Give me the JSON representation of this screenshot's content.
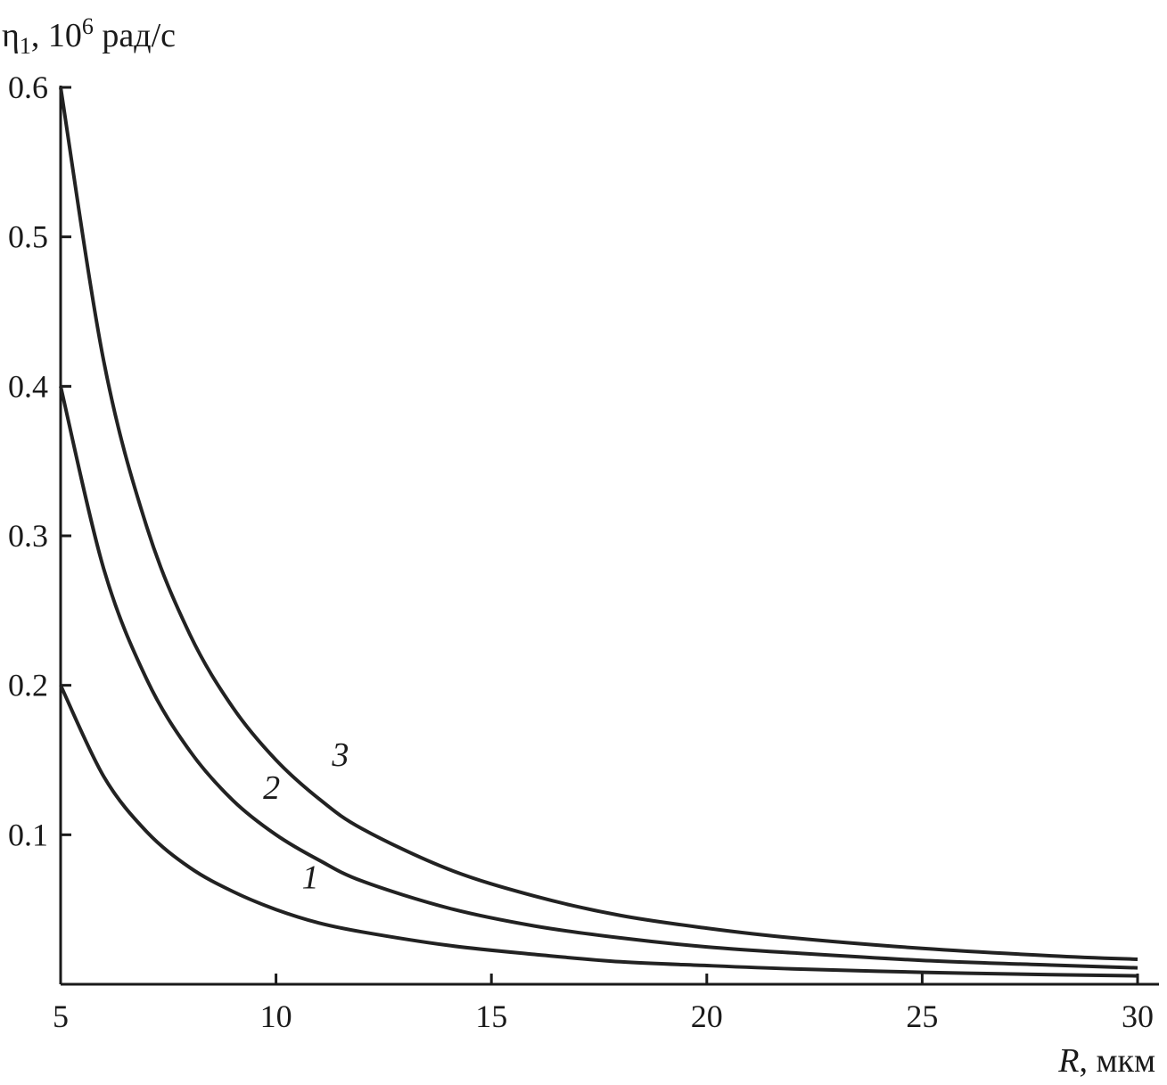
{
  "chart_data": {
    "type": "line",
    "title": "",
    "ylabel": {
      "symbol": "η",
      "subscript": "1",
      "sep": ", 10",
      "power": "6",
      "unit": " рад/с"
    },
    "xlabel": {
      "symbol": "R",
      "unit": ", мкм"
    },
    "xlim": [
      5,
      30
    ],
    "ylim": [
      0,
      0.6
    ],
    "xticks": [
      5,
      10,
      15,
      20,
      25,
      30
    ],
    "xtick_labels": [
      "5",
      "10",
      "15",
      "20",
      "25",
      "30"
    ],
    "yticks": [
      0.1,
      0.2,
      0.3,
      0.4,
      0.5,
      0.6
    ],
    "ytick_labels": [
      "0.1",
      "0.2",
      "0.3",
      "0.4",
      "0.5",
      "0.6"
    ],
    "grid": false,
    "legend": "none",
    "series": [
      {
        "name": "1",
        "x": [
          5,
          6,
          7,
          8,
          9,
          10,
          11,
          12,
          14,
          16,
          18,
          20,
          22,
          25,
          28,
          30
        ],
        "values": [
          0.2,
          0.139,
          0.102,
          0.078,
          0.062,
          0.05,
          0.041,
          0.035,
          0.026,
          0.02,
          0.015,
          0.0125,
          0.0103,
          0.008,
          0.0064,
          0.0056
        ]
      },
      {
        "name": "2",
        "x": [
          5,
          6,
          7,
          8,
          9,
          10,
          11,
          12,
          14,
          16,
          18,
          20,
          22,
          25,
          28,
          30
        ],
        "values": [
          0.4,
          0.278,
          0.204,
          0.156,
          0.123,
          0.1,
          0.083,
          0.069,
          0.051,
          0.039,
          0.031,
          0.025,
          0.021,
          0.016,
          0.0128,
          0.011
        ]
      },
      {
        "name": "3",
        "x": [
          5,
          6,
          7,
          8,
          9,
          10,
          11,
          12,
          14,
          16,
          18,
          20,
          22,
          25,
          28,
          30
        ],
        "values": [
          0.6,
          0.417,
          0.306,
          0.234,
          0.185,
          0.15,
          0.124,
          0.104,
          0.077,
          0.059,
          0.046,
          0.0375,
          0.031,
          0.024,
          0.019,
          0.0167
        ]
      }
    ],
    "annotations": [
      {
        "text": "1",
        "series": "1",
        "x": 10.6,
        "y": 0.064
      },
      {
        "text": "2",
        "series": "2",
        "x": 9.7,
        "y": 0.124
      },
      {
        "text": "3",
        "series": "3",
        "x": 11.3,
        "y": 0.146
      }
    ]
  }
}
